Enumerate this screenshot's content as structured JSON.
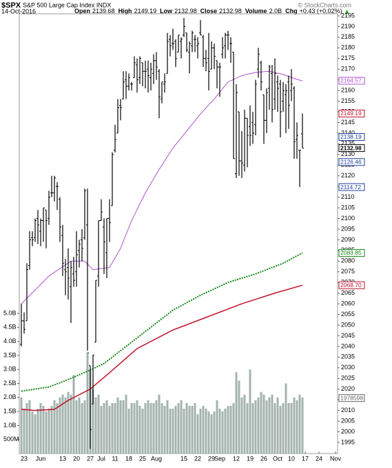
{
  "chart_data": {
    "type": "ohlc",
    "header": {
      "symbol": "$SPX",
      "name": "S&P 500 Large Cap Index INDX",
      "date": "14-Oct-2016",
      "credit": "© StockCharts.com",
      "fields": [
        {
          "label": "Open",
          "value": "2139.68"
        },
        {
          "label": "High",
          "value": "2149.19"
        },
        {
          "label": "Low",
          "value": "2132.98"
        },
        {
          "label": "Close",
          "value": "2132.98"
        },
        {
          "label": "Volume",
          "value": "2.0B"
        },
        {
          "label": "Chg",
          "value": "+0.43 (+0.02%)"
        }
      ]
    },
    "xlim": [
      -0.75,
      114.75
    ],
    "xticks": [
      {
        "value": 1,
        "label": "23"
      },
      {
        "value": 7,
        "label": "Jun"
      },
      {
        "value": 15,
        "label": "13"
      },
      {
        "value": 20,
        "label": "20"
      },
      {
        "value": 25,
        "label": "27"
      },
      {
        "value": 29,
        "label": "Jul"
      },
      {
        "value": 34,
        "label": "11"
      },
      {
        "value": 39,
        "label": "18"
      },
      {
        "value": 44,
        "label": "25"
      },
      {
        "value": 49,
        "label": "Aug"
      },
      {
        "value": 59,
        "label": "15"
      },
      {
        "value": 64,
        "label": "22"
      },
      {
        "value": 69,
        "label": "29"
      },
      {
        "value": 72,
        "label": "Sep"
      },
      {
        "value": 78,
        "label": "12"
      },
      {
        "value": 83,
        "label": "19"
      },
      {
        "value": 88,
        "label": "26"
      },
      {
        "value": 93,
        "label": "Oct"
      },
      {
        "value": 98,
        "label": "10"
      },
      {
        "value": 103,
        "label": "17"
      },
      {
        "value": 108,
        "label": "24"
      },
      {
        "value": 114,
        "label": "Nov"
      }
    ],
    "ylim": [
      1989.8,
      2196.6
    ],
    "yticks": [
      1995,
      2000,
      2005,
      2010,
      2015,
      2020,
      2025,
      2030,
      2035,
      2040,
      2045,
      2050,
      2055,
      2060,
      2065,
      2070,
      2075,
      2080,
      2085,
      2090,
      2095,
      2100,
      2105,
      2110,
      2115,
      2120,
      2125,
      2130,
      2135,
      2140,
      2145,
      2150,
      2155,
      2160,
      2165,
      2170,
      2175,
      2180,
      2185,
      2190,
      2195
    ],
    "color": "#000000",
    "ohlc": [
      [
        2041,
        2060,
        2040,
        2052
      ],
      [
        2052,
        2056,
        2046,
        2048
      ],
      [
        2052,
        2079,
        2052,
        2076
      ],
      [
        2078,
        2094,
        2076,
        2090
      ],
      [
        2091,
        2094,
        2087,
        2090
      ],
      [
        2091,
        2100,
        2089,
        2099
      ],
      [
        2100,
        2104,
        2088,
        2097
      ],
      [
        2094,
        2100,
        2087,
        2099
      ],
      [
        2099,
        2105,
        2089,
        2105
      ],
      [
        2104,
        2104,
        2086,
        2099
      ],
      [
        2100,
        2113,
        2097,
        2110
      ],
      [
        2112,
        2120,
        2110,
        2112
      ],
      [
        2112,
        2120,
        2108,
        2119
      ],
      [
        2115,
        2117,
        2104,
        2115
      ],
      [
        2109,
        2110,
        2089,
        2096
      ],
      [
        2092,
        2097,
        2073,
        2079
      ],
      [
        2076,
        2081,
        2064,
        2075
      ],
      [
        2077,
        2086,
        2062,
        2072
      ],
      [
        2068,
        2080,
        2051,
        2077
      ],
      [
        2074,
        2082,
        2068,
        2071
      ],
      [
        2075,
        2094,
        2068,
        2083
      ],
      [
        2085,
        2090,
        2077,
        2088
      ],
      [
        2090,
        2095,
        2080,
        2086
      ],
      [
        2091,
        2114,
        2090,
        2113
      ],
      [
        2097,
        2114,
        2038,
        2037
      ],
      [
        2031,
        2031,
        1992,
        2001
      ],
      [
        2013,
        2036,
        2013,
        2036
      ],
      [
        2042,
        2071,
        2042,
        2071
      ],
      [
        2073,
        2099,
        2068,
        2099
      ],
      [
        2099,
        2109,
        2099,
        2103
      ],
      [
        2096,
        2100,
        2074,
        2089
      ],
      [
        2084,
        2100,
        2072,
        2100
      ],
      [
        2100,
        2109,
        2089,
        2098
      ],
      [
        2106,
        2131,
        2106,
        2130
      ],
      [
        2132,
        2144,
        2131,
        2137
      ],
      [
        2140,
        2156,
        2140,
        2152
      ],
      [
        2153,
        2156,
        2146,
        2152
      ],
      [
        2156,
        2169,
        2156,
        2164
      ],
      [
        2165,
        2169,
        2156,
        2162
      ],
      [
        2162,
        2168,
        2160,
        2166
      ],
      [
        2163,
        2164,
        2160,
        2163
      ],
      [
        2166,
        2176,
        2166,
        2173
      ],
      [
        2172,
        2175,
        2159,
        2165
      ],
      [
        2166,
        2176,
        2163,
        2175
      ],
      [
        2173,
        2173,
        2162,
        2169
      ],
      [
        2169,
        2174,
        2161,
        2169
      ],
      [
        2170,
        2174,
        2159,
        2167
      ],
      [
        2166,
        2173,
        2160,
        2170
      ],
      [
        2168,
        2177,
        2163,
        2174
      ],
      [
        2174,
        2178,
        2165,
        2171
      ],
      [
        2169,
        2170,
        2147,
        2157
      ],
      [
        2156,
        2164,
        2154,
        2164
      ],
      [
        2163,
        2168,
        2159,
        2164
      ],
      [
        2168,
        2187,
        2168,
        2183
      ],
      [
        2184,
        2186,
        2176,
        2181
      ],
      [
        2182,
        2189,
        2179,
        2182
      ],
      [
        2183,
        2184,
        2171,
        2175
      ],
      [
        2178,
        2186,
        2178,
        2186
      ],
      [
        2183,
        2185,
        2175,
        2184
      ],
      [
        2186,
        2194,
        2185,
        2190
      ],
      [
        2187,
        2187,
        2178,
        2179
      ],
      [
        2178,
        2183,
        2168,
        2182
      ],
      [
        2181,
        2188,
        2178,
        2187
      ],
      [
        2184,
        2186,
        2178,
        2184
      ],
      [
        2181,
        2185,
        2175,
        2182
      ],
      [
        2187,
        2193,
        2186,
        2186
      ],
      [
        2185,
        2186,
        2171,
        2175
      ],
      [
        2175,
        2179,
        2169,
        2173
      ],
      [
        2175,
        2187,
        2160,
        2169
      ],
      [
        2170,
        2183,
        2170,
        2180
      ],
      [
        2180,
        2182,
        2170,
        2176
      ],
      [
        2174,
        2174,
        2161,
        2171
      ],
      [
        2171,
        2173,
        2157,
        2171
      ],
      [
        2177,
        2185,
        2175,
        2180
      ],
      [
        2181,
        2187,
        2175,
        2186
      ],
      [
        2186,
        2188,
        2179,
        2186
      ],
      [
        2182,
        2185,
        2173,
        2182
      ],
      [
        2178,
        2178,
        2128,
        2128
      ],
      [
        2121,
        2163,
        2119,
        2159
      ],
      [
        2150,
        2150,
        2120,
        2127
      ],
      [
        2127,
        2141,
        2119,
        2126
      ],
      [
        2125,
        2151,
        2122,
        2147
      ],
      [
        2147,
        2147,
        2124,
        2139
      ],
      [
        2143,
        2153,
        2134,
        2139
      ],
      [
        2145,
        2150,
        2135,
        2140
      ],
      [
        2144,
        2165,
        2139,
        2163
      ],
      [
        2170,
        2180,
        2166,
        2177
      ],
      [
        2173,
        2174,
        2160,
        2164
      ],
      [
        2158,
        2158,
        2135,
        2146
      ],
      [
        2146,
        2161,
        2140,
        2159
      ],
      [
        2161,
        2172,
        2151,
        2171
      ],
      [
        2168,
        2172,
        2145,
        2151
      ],
      [
        2156,
        2175,
        2151,
        2168
      ],
      [
        2164,
        2167,
        2150,
        2161
      ],
      [
        2163,
        2165,
        2138,
        2150
      ],
      [
        2155,
        2164,
        2150,
        2160
      ],
      [
        2158,
        2163,
        2140,
        2160
      ],
      [
        2164,
        2167,
        2142,
        2153
      ],
      [
        2160,
        2170,
        2155,
        2163
      ],
      [
        2161,
        2162,
        2128,
        2136
      ],
      [
        2137,
        2145,
        2128,
        2139
      ],
      [
        2132,
        2132,
        2114.72,
        2132
      ],
      [
        2139.68,
        2149.19,
        2132.98,
        2132.98
      ]
    ],
    "series": [
      {
        "color": "#b04fd0",
        "style": "solid",
        "width": 1,
        "x": [
          0,
          10,
          18,
          23,
          26,
          32,
          36,
          40,
          45,
          50,
          55,
          60,
          65,
          70,
          75,
          80,
          85,
          90,
          95,
          100,
          102
        ],
        "values": [
          2060,
          2073,
          2080,
          2080,
          2076,
          2077,
          2086,
          2099,
          2112,
          2123,
          2133,
          2141,
          2149,
          2156,
          2164,
          2167,
          2168.5,
          2169,
          2167.5,
          2165.2,
          2164.57
        ]
      },
      {
        "color": "#118811",
        "style": "dotted",
        "width": 2,
        "x": [
          0,
          10,
          18,
          25,
          30,
          38,
          45,
          55,
          65,
          75,
          85,
          95,
          102
        ],
        "values": [
          2019,
          2021,
          2025,
          2029,
          2032,
          2040,
          2047,
          2057,
          2064,
          2070,
          2074,
          2079,
          2083.85
        ]
      },
      {
        "color": "#c0102a",
        "style": "solid",
        "width": 1.5,
        "x": [
          0,
          5,
          12,
          17,
          25,
          32,
          42,
          55,
          67,
          80,
          92,
          102
        ],
        "values": [
          2010.5,
          2010,
          2010.5,
          2014.7,
          2020,
          2027.7,
          2039,
          2047.7,
          2053.6,
          2060,
          2065,
          2068.7
        ]
      }
    ],
    "volume": {
      "color": "#a3b3ad",
      "ylim": [
        0,
        15.74
      ],
      "yticks": [
        {
          "value": 0.5,
          "label": "500M"
        },
        {
          "value": 1,
          "label": "1.0B"
        },
        {
          "value": 1.5,
          "label": "1.5B"
        },
        {
          "value": 2,
          "label": "2.0B"
        },
        {
          "value": 2.5,
          "label": "2.5B"
        },
        {
          "value": 3,
          "label": "3.0B"
        },
        {
          "value": 3.5,
          "label": "3.5B"
        },
        {
          "value": 4,
          "label": "4.0B"
        },
        {
          "value": 4.5,
          "label": "4.5B"
        },
        {
          "value": 5,
          "label": "5.0B"
        }
      ],
      "values": [
        2.0,
        1.6,
        1.8,
        1.9,
        1.5,
        1.4,
        1.6,
        1.8,
        1.7,
        1.5,
        1.6,
        1.7,
        1.9,
        1.8,
        2.0,
        2.1,
        2.0,
        2.2,
        2.1,
        2.8,
        1.9,
        2.0,
        1.8,
        1.9,
        3.6,
        3.0,
        2.3,
        2.0,
        2.1,
        1.7,
        1.8,
        1.9,
        1.7,
        1.8,
        1.8,
        2.0,
        1.9,
        1.9,
        2.1,
        1.6,
        1.8,
        1.8,
        1.9,
        1.7,
        1.6,
        1.8,
        1.9,
        1.8,
        1.8,
        1.9,
        2.1,
        1.8,
        1.7,
        1.9,
        1.6,
        1.6,
        1.7,
        1.8,
        1.9,
        1.6,
        1.8,
        1.7,
        1.7,
        1.8,
        1.4,
        1.6,
        1.7,
        1.6,
        1.5,
        1.4,
        1.5,
        1.9,
        1.6,
        1.5,
        1.6,
        1.7,
        1.7,
        1.8,
        2.9,
        2.6,
        2.0,
        2.1,
        1.8,
        3.0,
        1.8,
        1.9,
        2.0,
        2.2,
        2.1,
        1.9,
        2.0,
        2.1,
        1.8,
        2.0,
        1.7,
        1.8,
        2.5,
        1.8,
        1.8,
        2.0,
        1.9,
        2.1,
        2.0
      ],
      "last_label": {
        "value": 1.978598,
        "label": "1978598",
        "color": "#666666"
      }
    },
    "last_values": [
      {
        "value": 2164.57,
        "label": "2164.57",
        "color": "#b04fd0"
      },
      {
        "value": 2149.19,
        "label": "2149.19",
        "color": "#c0102a"
      },
      {
        "value": 2138.19,
        "label": "2138.19",
        "color": "#1f3f9f"
      },
      {
        "value": 2132.98,
        "label": "2132.98",
        "color": "#000000"
      },
      {
        "value": 2126.46,
        "label": "2126.46",
        "color": "#1f3f9f"
      },
      {
        "value": 2114.72,
        "label": "2114.72",
        "color": "#1f3f9f"
      },
      {
        "value": 2083.85,
        "label": "2083.85",
        "color": "#118811"
      },
      {
        "value": 2068.7,
        "label": "2068.70",
        "color": "#c0102a"
      }
    ]
  }
}
